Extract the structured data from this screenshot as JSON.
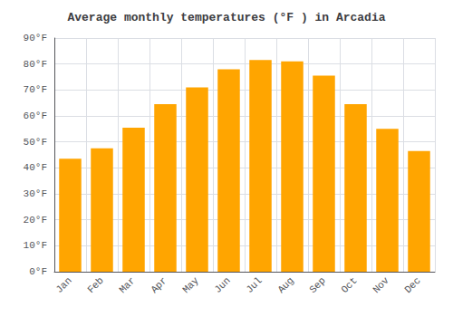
{
  "chart_data": {
    "type": "bar",
    "title": "Average monthly temperatures (°F ) in Arcadia",
    "categories": [
      "Jan",
      "Feb",
      "Mar",
      "Apr",
      "May",
      "Jun",
      "Jul",
      "Aug",
      "Sep",
      "Oct",
      "Nov",
      "Dec"
    ],
    "values": [
      43.5,
      47.5,
      55.5,
      64.5,
      71.0,
      78.0,
      81.5,
      81.0,
      75.5,
      64.5,
      55.0,
      46.5
    ],
    "color": "#FFA500",
    "ylim": [
      0,
      90
    ],
    "yticks": [
      {
        "value": 0,
        "label": "0°F"
      },
      {
        "value": 10,
        "label": "10°F"
      },
      {
        "value": 20,
        "label": "20°F"
      },
      {
        "value": 30,
        "label": "30°F"
      },
      {
        "value": 40,
        "label": "40°F"
      },
      {
        "value": 50,
        "label": "50°F"
      },
      {
        "value": 60,
        "label": "60°F"
      },
      {
        "value": 70,
        "label": "70°F"
      },
      {
        "value": 80,
        "label": "80°F"
      },
      {
        "value": 90,
        "label": "90°F"
      }
    ],
    "grid": true
  }
}
